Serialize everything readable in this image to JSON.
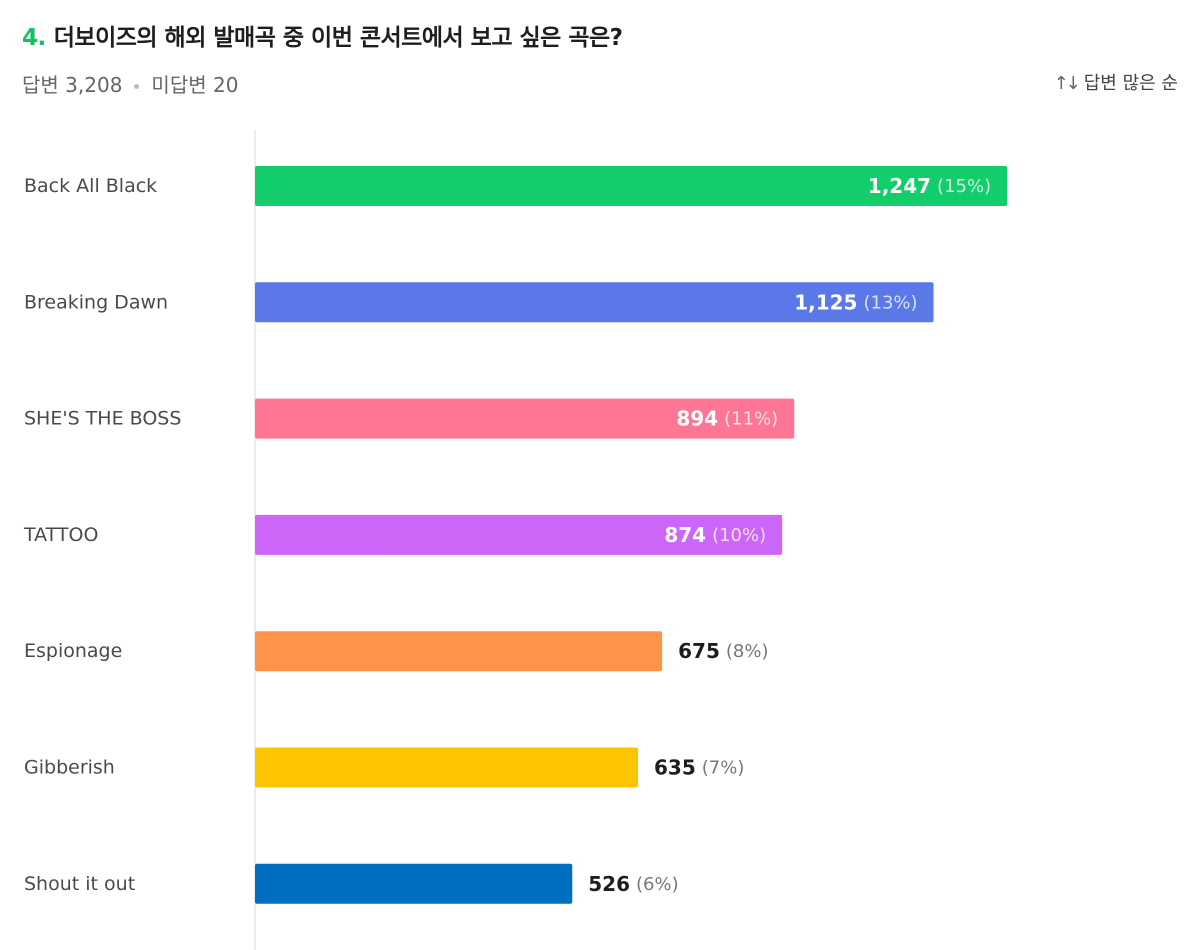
{
  "question": {
    "number": "4.",
    "text": "더보이즈의 해외 발매곡 중 이번 콘서트에서 보고 싶은 곡은?"
  },
  "meta": {
    "answered": "답변 3,208",
    "unanswered": "미답변 20"
  },
  "sort": {
    "icon": "sort-arrows-icon",
    "label": "답변 많은 순"
  },
  "chart_data": {
    "type": "bar",
    "orientation": "horizontal",
    "title": "",
    "xlabel": "",
    "ylabel": "",
    "categories": [
      "Back All Black",
      "Breaking Dawn",
      "SHE'S THE BOSS",
      "TATTOO",
      "Espionage",
      "Gibberish",
      "Shout it out"
    ],
    "values": [
      1247,
      1125,
      894,
      874,
      675,
      635,
      526
    ],
    "value_labels": [
      "1,247",
      "1,125",
      "894",
      "874",
      "675",
      "635",
      "526"
    ],
    "percent_labels": [
      "(15%)",
      "(13%)",
      "(11%)",
      "(10%)",
      "(8%)",
      "(7%)",
      "(6%)"
    ],
    "colors": [
      "#12cd6a",
      "#5a78e8",
      "#ff7594",
      "#cb66f9",
      "#ff9349",
      "#fdc500",
      "#006fc0"
    ],
    "label_inside": [
      true,
      true,
      true,
      true,
      false,
      false,
      false
    ],
    "xlim": [
      0,
      1527
    ],
    "grid": false,
    "legend": "none"
  }
}
